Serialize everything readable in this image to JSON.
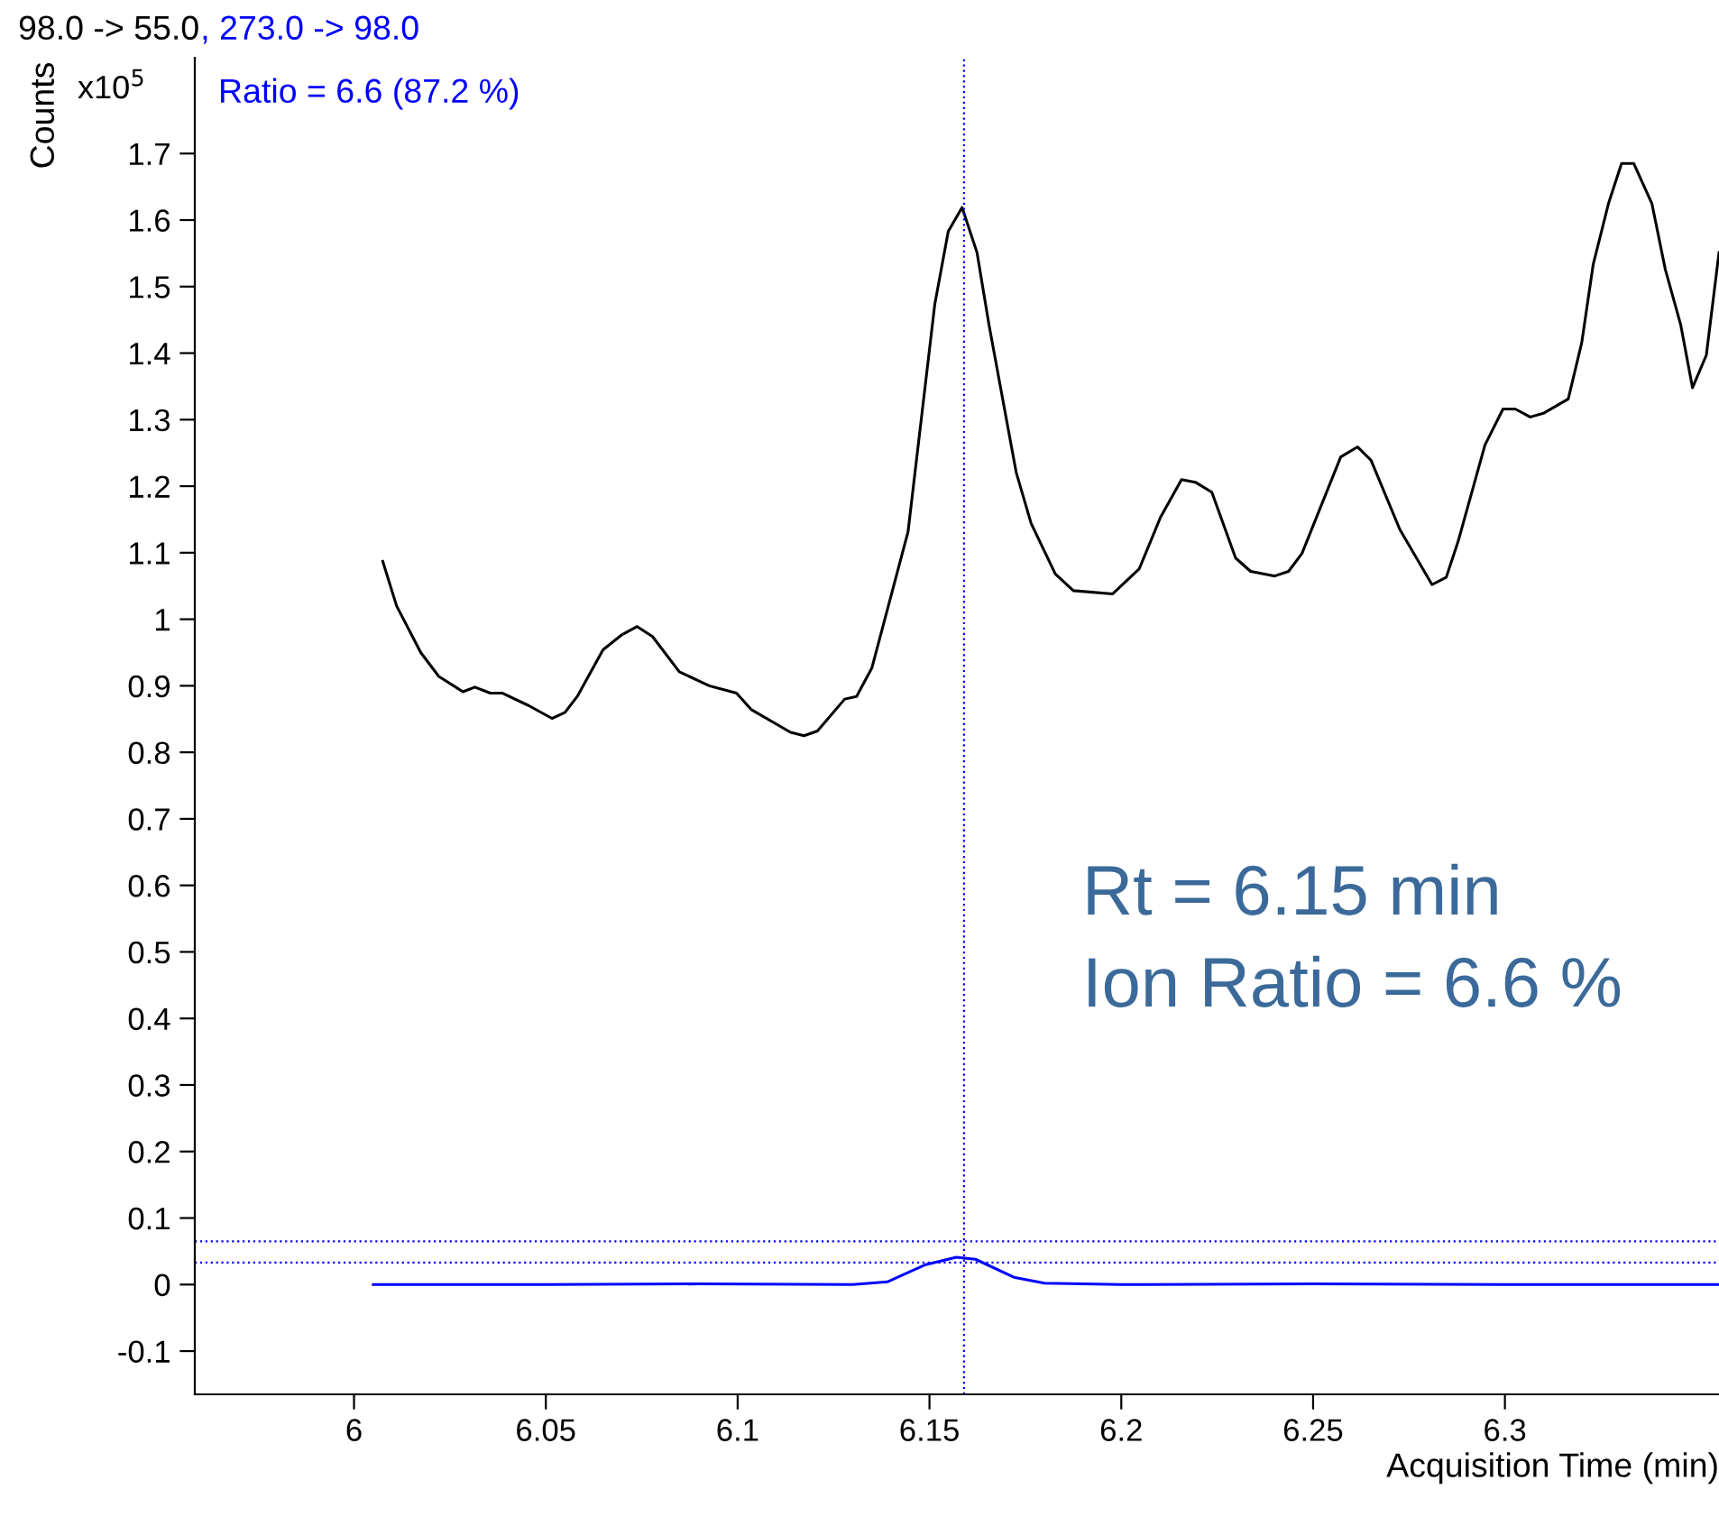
{
  "chart_data": {
    "type": "line",
    "title": "98.0 -> 55.0",
    "subtitle": ", 273.0 -> 98.0",
    "ylabel": "Counts",
    "xlabel": "Acquisition Time (min)",
    "annotations": [
      "x10$^{5}$",
      "Ratio = 6.6 (87.2 %)",
      "Rt = 6.15 min",
      "Ion Ratio = 6.6 %"
    ],
    "series": [
      {
        "color": "#000000",
        "x": [
          6.0075,
          6.0111,
          6.0174,
          6.0221,
          6.0284,
          6.0315,
          6.0355,
          6.0386,
          6.0456,
          6.0516,
          6.055,
          6.0582,
          6.0649,
          6.0699,
          6.0738,
          6.0778,
          6.0848,
          6.0926,
          6.0997,
          6.1036,
          6.1138,
          6.1173,
          6.1208,
          6.1279,
          6.131,
          6.135,
          6.1444,
          6.1514,
          6.1549,
          6.1585,
          6.1624,
          6.1655,
          6.1726,
          6.1765,
          6.1828,
          6.1875,
          6.1977,
          6.2047,
          6.2102,
          6.2157,
          6.2193,
          6.2236,
          6.2298,
          6.2337,
          6.24,
          6.2436,
          6.2471,
          6.2572,
          6.2616,
          6.2651,
          6.2726,
          6.281,
          6.2847,
          6.2878,
          6.2948,
          6.2995,
          6.3027,
          6.3066,
          6.3102,
          6.3165,
          6.32,
          6.323,
          6.327,
          6.3304,
          6.3336,
          6.3383,
          6.3418,
          6.3458,
          6.3489,
          6.3525,
          6.3558
        ],
        "values": [
          1.087,
          1.02,
          0.95,
          0.914,
          0.891,
          0.898,
          0.889,
          0.889,
          0.87,
          0.851,
          0.86,
          0.884,
          0.954,
          0.977,
          0.989,
          0.974,
          0.921,
          0.9,
          0.889,
          0.864,
          0.83,
          0.825,
          0.832,
          0.88,
          0.884,
          0.927,
          1.131,
          1.474,
          1.583,
          1.619,
          1.551,
          1.443,
          1.221,
          1.144,
          1.068,
          1.043,
          1.038,
          1.076,
          1.153,
          1.21,
          1.206,
          1.191,
          1.092,
          1.072,
          1.065,
          1.072,
          1.099,
          1.244,
          1.259,
          1.239,
          1.135,
          1.052,
          1.063,
          1.117,
          1.262,
          1.316,
          1.316,
          1.304,
          1.31,
          1.331,
          1.415,
          1.533,
          1.625,
          1.685,
          1.685,
          1.625,
          1.526,
          1.443,
          1.348,
          1.397,
          1.551
        ]
      },
      {
        "color": "#0000ff",
        "x": [
          6.005,
          6.05,
          6.09,
          6.13,
          6.139,
          6.149,
          6.157,
          6.162,
          6.172,
          6.18,
          6.2,
          6.25,
          6.3,
          6.3558
        ],
        "values": [
          0,
          0,
          0.001,
          0,
          0.004,
          0.03,
          0.041,
          0.038,
          0.011,
          0.002,
          0,
          0.001,
          0,
          0
        ]
      }
    ],
    "ref_lines": [
      {
        "axis": "x",
        "value": 6.159,
        "color": "#0000ff",
        "line_style": "dotted"
      },
      {
        "axis": "y",
        "value": 0.065,
        "color": "#0000ff",
        "line_style": "dotted"
      },
      {
        "axis": "y",
        "value": 0.033,
        "color": "#0000ff",
        "line_style": "dotted"
      }
    ],
    "xlim": [
      5.9585,
      6.3558
    ],
    "ylim": [
      -0.165,
      1.844
    ],
    "xticks": [
      6,
      6.05,
      6.1,
      6.15,
      6.2,
      6.25,
      6.3
    ],
    "yticks": [
      -0.1,
      0,
      0.1,
      0.2,
      0.3,
      0.4,
      0.5,
      0.6,
      0.7,
      0.8,
      0.9,
      1,
      1.1,
      1.2,
      1.3,
      1.4,
      1.5,
      1.6,
      1.7
    ],
    "grid": false,
    "legend": false
  }
}
